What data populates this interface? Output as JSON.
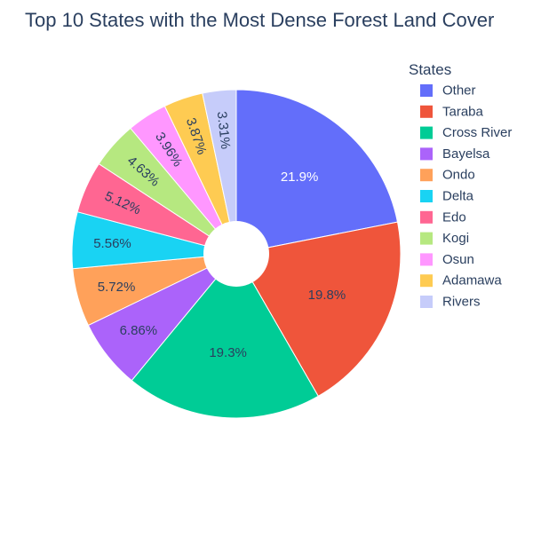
{
  "chart_data": {
    "type": "pie",
    "title": "Top 10 States with the Most Dense Forest Land Cover",
    "legend_title": "States",
    "legend_position": "right",
    "hole": true,
    "slices": [
      {
        "label": "Other",
        "value": 21.9,
        "text": "21.9%",
        "color": "#636efa"
      },
      {
        "label": "Taraba",
        "value": 19.8,
        "text": "19.8%",
        "color": "#EF553B"
      },
      {
        "label": "Cross River",
        "value": 19.3,
        "text": "19.3%",
        "color": "#00cc96"
      },
      {
        "label": "Bayelsa",
        "value": 6.86,
        "text": "6.86%",
        "color": "#ab63fa"
      },
      {
        "label": "Ondo",
        "value": 5.72,
        "text": "5.72%",
        "color": "#FFA15A"
      },
      {
        "label": "Delta",
        "value": 5.56,
        "text": "5.56%",
        "color": "#19d3f3"
      },
      {
        "label": "Edo",
        "value": 5.12,
        "text": "5.12%",
        "color": "#FF6692"
      },
      {
        "label": "Kogi",
        "value": 4.63,
        "text": "4.63%",
        "color": "#B6E880"
      },
      {
        "label": "Osun",
        "value": 3.96,
        "text": "3.96%",
        "color": "#FF97FF"
      },
      {
        "label": "Adamawa",
        "value": 3.87,
        "text": "3.87%",
        "color": "#FECB52"
      },
      {
        "label": "Rivers",
        "value": 3.31,
        "text": "3.31%",
        "color": "#c6ccfa"
      }
    ]
  }
}
